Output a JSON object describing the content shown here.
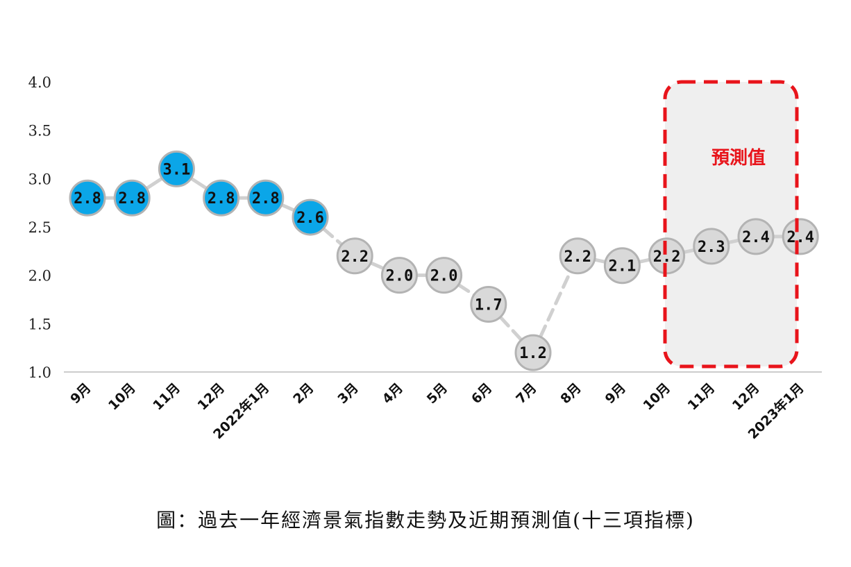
{
  "chart_data": {
    "type": "line",
    "categories": [
      "9月",
      "10月",
      "11月",
      "12月",
      "2022年1月",
      "2月",
      "3月",
      "4月",
      "5月",
      "6月",
      "7月",
      "8月",
      "9月",
      "10月",
      "11月",
      "12月",
      "2023年1月"
    ],
    "values": [
      2.8,
      2.8,
      3.1,
      2.8,
      2.8,
      2.6,
      2.2,
      2.0,
      2.0,
      1.7,
      1.2,
      2.2,
      2.1,
      2.2,
      2.3,
      2.4,
      2.4
    ],
    "labels": [
      "2.8",
      "2.8",
      "3.1",
      "2.8",
      "2.8",
      "2.6",
      "2.2",
      "2.0",
      "2.0",
      "1.7",
      "1.2",
      "2.2",
      "2.1",
      "2.2",
      "2.3",
      "2.4",
      "2.4"
    ],
    "highlight_count": 6,
    "ylim": [
      1.0,
      4.0
    ],
    "yticks": [
      "1.0",
      "1.5",
      "2.0",
      "2.5",
      "3.0",
      "3.5",
      "4.0"
    ],
    "forecast_label": "預測值",
    "forecast_start_index": 14,
    "colors": {
      "highlight": "#0ba6e8",
      "normal": "#d9d9d9",
      "marker_border": "#b3b3b3",
      "forecast": "#e8141b",
      "forecast_bg": "#efefef",
      "axis": "#cccccc"
    }
  },
  "caption": "圖：過去一年經濟景氣指數走勢及近期預測值(十三項指標)"
}
